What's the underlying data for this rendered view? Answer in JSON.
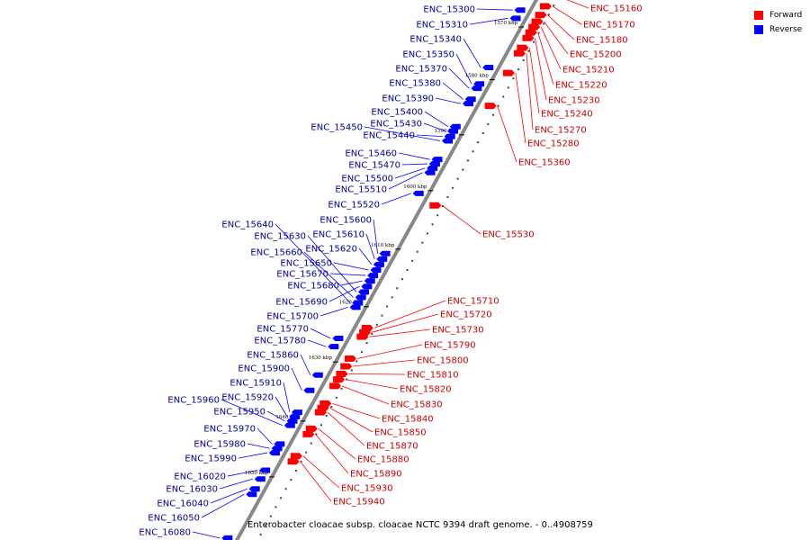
{
  "colors": {
    "forward": "#ff0000",
    "reverse": "#0000ff",
    "forward_label": "#cc0000",
    "reverse_label": "#000099",
    "backbone": "#888888"
  },
  "legend": {
    "forward": "Forward",
    "reverse": "Reverse"
  },
  "caption": "Enterobacter cloacae subsp. cloacae NCTC 9394 draft genome. - 0..4908759",
  "ticks": [
    {
      "label": "1570 kbp",
      "t": 0.056
    },
    {
      "label": "1580 kbp",
      "t": 0.152
    },
    {
      "label": "1590 kbp",
      "t": 0.253
    },
    {
      "label": "1600 kbp",
      "t": 0.355
    },
    {
      "label": "1610 kbp",
      "t": 0.462
    },
    {
      "label": "1620 kbp",
      "t": 0.567
    },
    {
      "label": "1630 kbp",
      "t": 0.668
    },
    {
      "label": "1640 kbp",
      "t": 0.776
    },
    {
      "label": "1650 kbp",
      "t": 0.878
    }
  ],
  "reverse_genes": [
    {
      "name": "ENC_15300",
      "t": 0.025
    },
    {
      "name": "ENC_15310",
      "t": 0.04
    },
    {
      "name": "ENC_15340",
      "t": 0.13
    },
    {
      "name": "ENC_15350",
      "t": 0.16
    },
    {
      "name": "ENC_15370",
      "t": 0.168
    },
    {
      "name": "ENC_15380",
      "t": 0.188
    },
    {
      "name": "ENC_15390",
      "t": 0.196
    },
    {
      "name": "ENC_15400",
      "t": 0.238
    },
    {
      "name": "ENC_15430",
      "t": 0.246
    },
    {
      "name": "ENC_15440",
      "t": 0.256
    },
    {
      "name": "ENC_15450",
      "t": 0.264
    },
    {
      "name": "ENC_15460",
      "t": 0.298
    },
    {
      "name": "ENC_15470",
      "t": 0.306
    },
    {
      "name": "ENC_15500",
      "t": 0.314
    },
    {
      "name": "ENC_15510",
      "t": 0.322
    },
    {
      "name": "ENC_15520",
      "t": 0.36
    },
    {
      "name": "ENC_15600",
      "t": 0.47
    },
    {
      "name": "ENC_15610",
      "t": 0.48
    },
    {
      "name": "ENC_15620",
      "t": 0.49
    },
    {
      "name": "ENC_15650",
      "t": 0.5
    },
    {
      "name": "ENC_15670",
      "t": 0.51
    },
    {
      "name": "ENC_15680",
      "t": 0.52
    },
    {
      "name": "ENC_15690",
      "t": 0.53
    },
    {
      "name": "ENC_15630",
      "t": 0.54
    },
    {
      "name": "ENC_15660",
      "t": 0.55
    },
    {
      "name": "ENC_15640",
      "t": 0.56
    },
    {
      "name": "ENC_15700",
      "t": 0.568
    },
    {
      "name": "ENC_15770",
      "t": 0.625
    },
    {
      "name": "ENC_15780",
      "t": 0.64
    },
    {
      "name": "ENC_15860",
      "t": 0.692
    },
    {
      "name": "ENC_15900",
      "t": 0.72
    },
    {
      "name": "ENC_15910",
      "t": 0.76
    },
    {
      "name": "ENC_15920",
      "t": 0.768
    },
    {
      "name": "ENC_15950",
      "t": 0.776
    },
    {
      "name": "ENC_15960",
      "t": 0.784
    },
    {
      "name": "ENC_15970",
      "t": 0.818
    },
    {
      "name": "ENC_15980",
      "t": 0.826
    },
    {
      "name": "ENC_15990",
      "t": 0.834
    },
    {
      "name": "ENC_16020",
      "t": 0.866
    },
    {
      "name": "ENC_16030",
      "t": 0.882
    },
    {
      "name": "ENC_16040",
      "t": 0.9
    },
    {
      "name": "ENC_16050",
      "t": 0.91
    },
    {
      "name": "ENC_16080",
      "t": 0.99
    }
  ],
  "forward_genes": [
    {
      "name": "ENC_15160",
      "t": 0.0
    },
    {
      "name": "ENC_15170",
      "t": 0.018
    },
    {
      "name": "ENC_15180",
      "t": 0.034
    },
    {
      "name": "ENC_15200",
      "t": 0.046
    },
    {
      "name": "ENC_15210",
      "t": 0.056
    },
    {
      "name": "ENC_15220",
      "t": 0.066
    },
    {
      "name": "ENC_15230",
      "t": 0.076
    },
    {
      "name": "ENC_15240",
      "t": 0.094
    },
    {
      "name": "ENC_15270",
      "t": 0.104
    },
    {
      "name": "ENC_15280",
      "t": 0.14
    },
    {
      "name": "ENC_15360",
      "t": 0.2
    },
    {
      "name": "ENC_15530",
      "t": 0.382
    },
    {
      "name": "ENC_15710",
      "t": 0.606
    },
    {
      "name": "ENC_15720",
      "t": 0.614
    },
    {
      "name": "ENC_15730",
      "t": 0.622
    },
    {
      "name": "ENC_15790",
      "t": 0.662
    },
    {
      "name": "ENC_15800",
      "t": 0.676
    },
    {
      "name": "ENC_15810",
      "t": 0.69
    },
    {
      "name": "ENC_15820",
      "t": 0.7
    },
    {
      "name": "ENC_15830",
      "t": 0.712
    },
    {
      "name": "ENC_15840",
      "t": 0.744
    },
    {
      "name": "ENC_15850",
      "t": 0.752
    },
    {
      "name": "ENC_15870",
      "t": 0.76
    },
    {
      "name": "ENC_15880",
      "t": 0.79
    },
    {
      "name": "ENC_15890",
      "t": 0.8
    },
    {
      "name": "ENC_15930",
      "t": 0.84
    },
    {
      "name": "ENC_15940",
      "t": 0.85
    }
  ]
}
